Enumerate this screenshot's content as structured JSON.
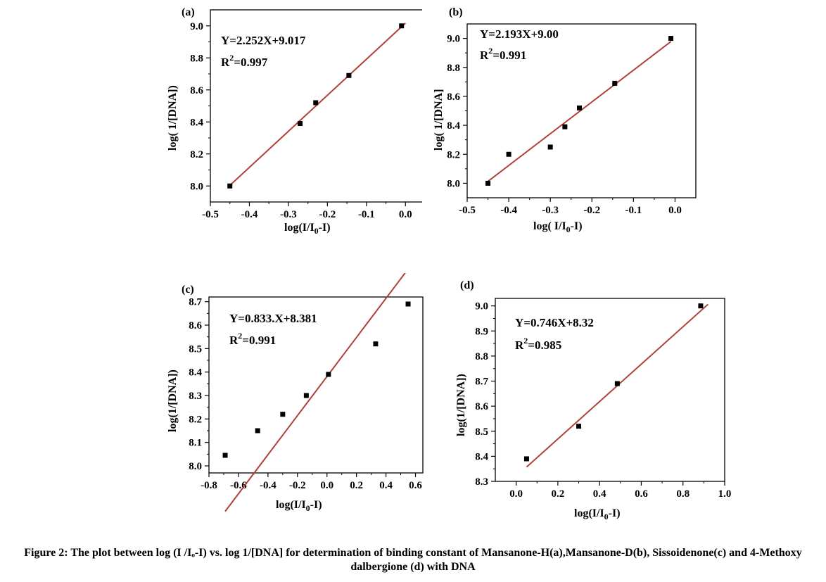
{
  "caption": {
    "text": "Figure 2: The plot between log (I /Iₒ-I) vs. log 1/[DNA] for determination of binding constant of Mansanone-H(a),Mansanone-D(b), Sissoidenone(c) and 4-Methoxy dalbergione (d) with DNA"
  },
  "colors": {
    "fit_line": "#b0403a",
    "points": "#000000",
    "frame": "#000000"
  },
  "chart_data": [
    {
      "type": "scatter",
      "panel_label": "(a)",
      "xlabel": "log(I/I0-I)",
      "ylabel": "log( 1/[DNA])",
      "equation": "Y=2.252X+9.017",
      "r2_text": "R2=0.997",
      "xlim": [
        -0.5,
        0.05
      ],
      "ylim": [
        7.9,
        9.1
      ],
      "xticks": [
        -0.5,
        -0.4,
        -0.3,
        -0.2,
        -0.1,
        0.0
      ],
      "xtick_labels": [
        "-0.5",
        "-0.4",
        "-0.3",
        "-0.2",
        "-0.1",
        "0.0"
      ],
      "yticks": [
        8.0,
        8.2,
        8.4,
        8.6,
        8.8,
        9.0
      ],
      "ytick_labels": [
        "8.0",
        "8.2",
        "8.4",
        "8.6",
        "8.8",
        "9.0"
      ],
      "x": [
        -0.45,
        -0.27,
        -0.23,
        -0.145,
        -0.01
      ],
      "y": [
        8.0,
        8.39,
        8.52,
        8.69,
        9.0
      ],
      "fit": {
        "slope": 2.252,
        "intercept": 9.017,
        "x_range": [
          -0.45,
          0.0
        ]
      }
    },
    {
      "type": "scatter",
      "panel_label": "(b)",
      "xlabel": "log( I/I0-I)",
      "ylabel": "log( 1/[DNA]",
      "equation": "Y=2.193X+9.00",
      "r2_text": "R2=0.991",
      "xlim": [
        -0.5,
        0.05
      ],
      "ylim": [
        7.9,
        9.1
      ],
      "xticks": [
        -0.5,
        -0.4,
        -0.3,
        -0.2,
        -0.1,
        0.0
      ],
      "xtick_labels": [
        "-0.5",
        "-0.4",
        "-0.3",
        "-0.2",
        "-0.1",
        "0.0"
      ],
      "yticks": [
        8.0,
        8.2,
        8.4,
        8.6,
        8.8,
        9.0
      ],
      "ytick_labels": [
        "8.0",
        "8.2",
        "8.4",
        "8.6",
        "8.8",
        "9.0"
      ],
      "x": [
        -0.45,
        -0.4,
        -0.3,
        -0.265,
        -0.23,
        -0.145,
        -0.01
      ],
      "y": [
        8.0,
        8.2,
        8.25,
        8.39,
        8.52,
        8.69,
        9.0
      ],
      "fit": {
        "slope": 2.193,
        "intercept": 9.0,
        "x_range": [
          -0.45,
          -0.01
        ]
      }
    },
    {
      "type": "scatter",
      "panel_label": "(c)",
      "xlabel": "log(I/I0-I)",
      "ylabel": "log(1/[DNA])",
      "equation": "Y=0.833.X+8.381",
      "r2_text": "R2=0.991",
      "xlim": [
        -0.8,
        0.65
      ],
      "ylim": [
        7.97,
        8.72
      ],
      "xticks": [
        -0.8,
        -0.6,
        -0.4,
        -0.2,
        0.0,
        0.2,
        0.4,
        0.6
      ],
      "xtick_labels": [
        "-0.8",
        "-0.6",
        "-0.4",
        "-0.2",
        "0.0",
        "0.2",
        "0.4",
        "0.6"
      ],
      "yticks": [
        8.0,
        8.1,
        8.2,
        8.3,
        8.4,
        8.5,
        8.6,
        8.7
      ],
      "ytick_labels": [
        "8.0",
        "8.1",
        "8.2",
        "8.3",
        "8.4",
        "8.5",
        "8.6",
        "8.7"
      ],
      "x": [
        -0.69,
        -0.47,
        -0.3,
        -0.14,
        0.01,
        0.33,
        0.55
      ],
      "y": [
        8.045,
        8.15,
        8.22,
        8.3,
        8.39,
        8.52,
        8.69
      ],
      "fit": {
        "slope": 0.833,
        "intercept": 8.381,
        "x_range": [
          -0.69,
          0.58
        ]
      }
    },
    {
      "type": "scatter",
      "panel_label": "(d)",
      "xlabel": "log(I/I0-I)",
      "ylabel": "log(1/[DNA])",
      "equation": "Y=0.746X+8.32",
      "r2_text": "R2=0.985",
      "xlim": [
        -0.1,
        1.0
      ],
      "ylim": [
        8.3,
        9.03
      ],
      "xticks": [
        0.0,
        0.2,
        0.4,
        0.6,
        0.8,
        1.0
      ],
      "xtick_labels": [
        "0.0",
        "0.2",
        "0.4",
        "0.6",
        "0.8",
        "1.0"
      ],
      "yticks": [
        8.3,
        8.4,
        8.5,
        8.6,
        8.7,
        8.8,
        8.9,
        9.0
      ],
      "ytick_labels": [
        "8.3",
        "8.4",
        "8.5",
        "8.6",
        "8.7",
        "8.8",
        "8.9",
        "9.0"
      ],
      "x": [
        0.05,
        0.3,
        0.485,
        0.885
      ],
      "y": [
        8.39,
        8.52,
        8.69,
        9.0
      ],
      "fit": {
        "slope": 0.746,
        "intercept": 8.32,
        "x_range": [
          0.05,
          0.92
        ]
      }
    }
  ]
}
